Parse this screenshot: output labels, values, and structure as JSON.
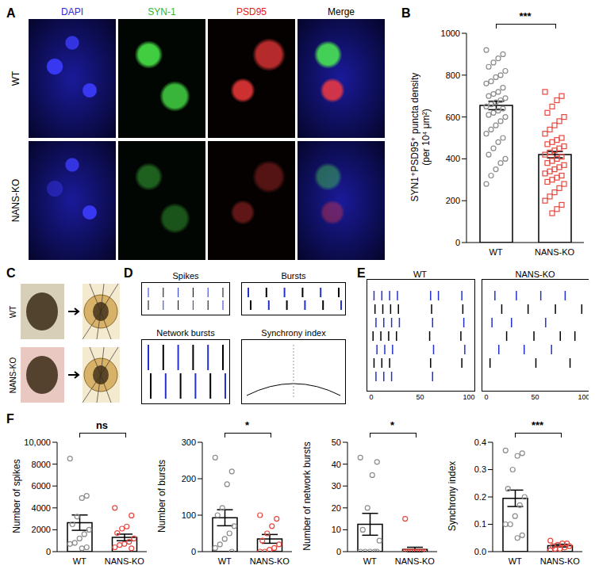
{
  "chart_data": [
    {
      "type": "bar",
      "panel": "B",
      "ylabel": [
        "SYN1⁺PSD95⁺ puncta density",
        "(per 10⁴ μm²)"
      ],
      "categories": [
        "WT",
        "NANS-KO"
      ],
      "values": [
        655,
        420
      ],
      "errors": [
        20,
        15
      ],
      "color": "#ffffff",
      "significance": "***",
      "ylim": [
        0,
        1000
      ],
      "yticks": [
        0,
        200,
        400,
        600,
        800,
        1000
      ],
      "points": [
        {
          "category": "WT",
          "color": "#8c8c8c",
          "marker": "circle",
          "values": [
            920,
            900,
            880,
            860,
            840,
            820,
            800,
            790,
            770,
            760,
            740,
            720,
            710,
            700,
            690,
            680,
            670,
            660,
            650,
            640,
            630,
            620,
            610,
            600,
            580,
            560,
            540,
            520,
            500,
            480,
            450,
            420,
            400,
            380,
            350,
            320,
            280
          ]
        },
        {
          "category": "NANS-KO",
          "color": "#e8473f",
          "marker": "square",
          "values": [
            720,
            700,
            680,
            650,
            620,
            600,
            580,
            560,
            540,
            520,
            500,
            490,
            480,
            470,
            460,
            450,
            440,
            430,
            420,
            410,
            400,
            390,
            380,
            370,
            360,
            350,
            340,
            330,
            320,
            310,
            300,
            290,
            280,
            260,
            240,
            220,
            200,
            180,
            160,
            140
          ]
        }
      ]
    },
    {
      "type": "bar",
      "panel": "F",
      "ylabel": [
        "Number of spikes"
      ],
      "categories": [
        "WT",
        "NANS-KO"
      ],
      "values": [
        2650,
        1300
      ],
      "errors": [
        700,
        300
      ],
      "color": "#ffffff",
      "significance": "ns",
      "ylim": [
        0,
        10000
      ],
      "yticks": [
        0,
        2000,
        4000,
        6000,
        8000,
        {
          "value": 10000,
          "label": "10,000"
        }
      ],
      "points": [
        {
          "category": "WT",
          "color": "#8c8c8c",
          "marker": "circle",
          "values": [
            8500,
            5100,
            4900,
            3200,
            2500,
            2000,
            1600,
            1200,
            800,
            700,
            400,
            300
          ]
        },
        {
          "category": "NANS-KO",
          "color": "#e8473f",
          "marker": "circle",
          "values": [
            4000,
            3300,
            2300,
            2100,
            1700,
            1200,
            900,
            700,
            600,
            400,
            300
          ]
        }
      ]
    },
    {
      "type": "bar",
      "ylabel": [
        "Number of bursts"
      ],
      "categories": [
        "WT",
        "NANS-KO"
      ],
      "values": [
        93,
        35
      ],
      "errors": [
        22,
        12
      ],
      "color": "#ffffff",
      "significance": "*",
      "ylim": [
        0,
        300
      ],
      "yticks": [
        0,
        100,
        200,
        300
      ],
      "points": [
        {
          "category": "WT",
          "color": "#8c8c8c",
          "marker": "circle",
          "values": [
            258,
            220,
            185,
            120,
            100,
            70,
            50,
            35,
            20,
            10,
            0
          ]
        },
        {
          "category": "NANS-KO",
          "color": "#e8473f",
          "marker": "circle",
          "values": [
            100,
            90,
            70,
            50,
            30,
            20,
            10,
            5,
            0,
            0
          ]
        }
      ]
    },
    {
      "type": "bar",
      "ylabel": [
        "Number of network bursts"
      ],
      "categories": [
        "WT",
        "NANS-KO"
      ],
      "values": [
        12.5,
        1
      ],
      "errors": [
        5,
        1
      ],
      "color": "#ffffff",
      "significance": "*",
      "ylim": [
        0,
        50
      ],
      "yticks": [
        0,
        10,
        20,
        30,
        40,
        50
      ],
      "points": [
        {
          "category": "WT",
          "color": "#8c8c8c",
          "marker": "circle",
          "values": [
            43,
            41,
            35,
            20,
            10,
            5,
            0,
            0,
            0,
            0,
            0
          ]
        },
        {
          "category": "NANS-KO",
          "color": "#e8473f",
          "marker": "circle",
          "values": [
            15,
            0,
            0,
            0,
            0,
            0,
            0,
            0,
            0,
            0
          ]
        }
      ]
    },
    {
      "type": "bar",
      "ylabel": [
        "Synchrony index"
      ],
      "categories": [
        "WT",
        "NANS-KO"
      ],
      "values": [
        0.195,
        0.022
      ],
      "errors": [
        0.03,
        0.005
      ],
      "color": "#ffffff",
      "significance": "***",
      "ylim": [
        0,
        0.4
      ],
      "yticks": [
        {
          "value": 0,
          "label": "0.0"
        },
        {
          "value": 0.1,
          "label": "0.1"
        },
        {
          "value": 0.2,
          "label": "0.2"
        },
        {
          "value": 0.3,
          "label": "0.3"
        },
        {
          "value": 0.4,
          "label": "0.4"
        }
      ],
      "points": [
        {
          "category": "WT",
          "color": "#8c8c8c",
          "marker": "circle",
          "values": [
            0.37,
            0.36,
            0.35,
            0.3,
            0.23,
            0.2,
            0.17,
            0.13,
            0.1,
            0.1,
            0.06,
            0.05
          ]
        },
        {
          "category": "NANS-KO",
          "color": "#e8473f",
          "marker": "circle",
          "values": [
            0.04,
            0.03,
            0.03,
            0.025,
            0.02,
            0.02,
            0.015,
            0.01,
            0.01,
            0.005
          ]
        }
      ]
    }
  ],
  "figure": {
    "A": {
      "label": "A",
      "channels": [
        {
          "name": "DAPI",
          "color": "#2b2bd9"
        },
        {
          "name": "SYN-1",
          "color": "#2eb82e"
        },
        {
          "name": "PSD95",
          "color": "#e02020"
        },
        {
          "name": "Merge",
          "color": "#000000"
        }
      ],
      "rows": [
        "WT",
        "NANS-KO"
      ]
    },
    "C": {
      "label": "C",
      "rows": [
        "WT",
        "NANS-KO"
      ]
    },
    "D": {
      "label": "D",
      "boxes": [
        "Spikes",
        "Bursts",
        "Network bursts",
        "Synchrony index"
      ]
    },
    "E": {
      "label": "E",
      "xlim": [
        0,
        100
      ],
      "xticks": [
        0,
        50,
        100
      ],
      "panels": [
        {
          "title": "WT",
          "rows": [
            [
              2,
              10,
              18,
              26,
              60,
              68,
              92
            ],
            [
              3,
              11,
              19,
              27,
              61,
              93
            ],
            [
              4,
              12,
              20,
              28,
              62,
              94
            ],
            [
              1,
              9,
              17,
              25,
              59,
              91
            ],
            [
              5,
              13,
              21,
              63,
              95
            ],
            [
              2,
              10,
              18,
              60,
              92
            ],
            [
              4,
              12,
              20,
              62
            ]
          ]
        },
        {
          "title": "NANS-KO",
          "rows": [
            [
              8,
              30,
              55,
              80
            ],
            [
              15,
              42,
              70,
              97
            ],
            [
              5,
              25,
              60
            ],
            [
              20,
              48,
              75,
              90
            ],
            [
              12,
              38,
              66
            ],
            [
              3,
              50,
              85
            ]
          ]
        }
      ]
    },
    "F": {
      "label": "F"
    }
  }
}
